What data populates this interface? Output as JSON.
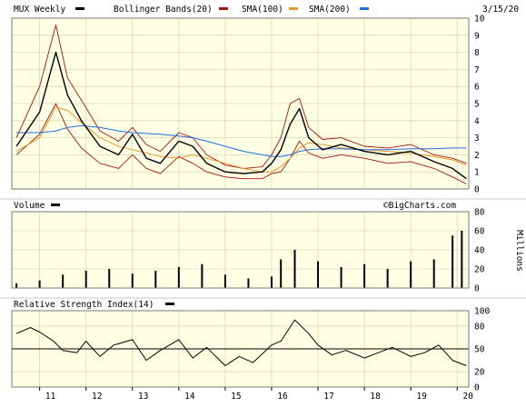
{
  "chart_data": [
    {
      "panel": "price",
      "type": "line",
      "title": "MUX Weekly",
      "legend": [
        {
          "name": "MUX Weekly",
          "color": "#000000"
        },
        {
          "name": "Bollinger Bands(20)",
          "color": "#aa1111"
        },
        {
          "name": "SMA(100)",
          "color": "#e39a2a"
        },
        {
          "name": "SMA(200)",
          "color": "#1f6fe0"
        }
      ],
      "legend_position": "top",
      "date_label": "3/15/20",
      "ylim": [
        0,
        10
      ],
      "yticks": [
        "0",
        "1",
        "2",
        "3",
        "4",
        "5",
        "6",
        "7",
        "8",
        "9",
        "10"
      ],
      "grid": true,
      "x_years": [
        2010.5,
        2011,
        2011.35,
        2011.6,
        2011.9,
        2012.3,
        2012.7,
        2013.0,
        2013.3,
        2013.6,
        2014.0,
        2014.3,
        2014.6,
        2015.0,
        2015.4,
        2015.8,
        2016.0,
        2016.2,
        2016.4,
        2016.6,
        2016.8,
        2017.1,
        2017.5,
        2018.0,
        2018.5,
        2019.0,
        2019.5,
        2019.9,
        2020.2
      ],
      "series": [
        {
          "name": "MUX Weekly",
          "values": [
            2.5,
            4.5,
            8.0,
            5.5,
            4.0,
            2.5,
            2.0,
            3.2,
            1.8,
            1.5,
            2.8,
            2.5,
            1.5,
            1.0,
            0.9,
            1.0,
            1.5,
            2.3,
            3.8,
            4.7,
            3.0,
            2.3,
            2.6,
            2.2,
            2.0,
            2.2,
            1.6,
            1.2,
            0.6
          ]
        },
        {
          "name": "Bollinger Upper",
          "values": [
            3.0,
            6.0,
            9.6,
            6.5,
            5.2,
            3.4,
            2.8,
            3.6,
            2.6,
            2.2,
            3.3,
            3.0,
            2.0,
            1.4,
            1.2,
            1.3,
            2.0,
            3.0,
            5.0,
            5.3,
            3.6,
            2.9,
            3.0,
            2.5,
            2.4,
            2.6,
            2.0,
            1.8,
            1.5
          ]
        },
        {
          "name": "Bollinger Lower",
          "values": [
            2.0,
            3.2,
            5.0,
            3.5,
            2.4,
            1.5,
            1.2,
            2.0,
            1.2,
            0.9,
            1.9,
            1.5,
            1.0,
            0.7,
            0.6,
            0.6,
            0.9,
            1.0,
            1.8,
            2.8,
            2.1,
            1.8,
            2.0,
            1.8,
            1.5,
            1.6,
            1.2,
            0.7,
            0.3
          ]
        },
        {
          "name": "SMA(100)",
          "values": [
            2.2,
            3.0,
            4.8,
            4.6,
            3.9,
            3.0,
            2.5,
            2.3,
            2.1,
            1.9,
            1.8,
            2.0,
            1.8,
            1.5,
            1.2,
            1.0,
            1.0,
            1.3,
            1.8,
            2.4,
            2.7,
            2.6,
            2.4,
            2.3,
            2.2,
            2.1,
            1.9,
            1.7,
            1.4
          ]
        },
        {
          "name": "SMA(200)",
          "values": [
            3.3,
            3.3,
            3.4,
            3.6,
            3.7,
            3.6,
            3.4,
            3.3,
            3.25,
            3.2,
            3.1,
            3.0,
            2.8,
            2.5,
            2.2,
            2.0,
            1.9,
            1.9,
            2.0,
            2.2,
            2.3,
            2.35,
            2.35,
            2.3,
            2.3,
            2.35,
            2.35,
            2.4,
            2.4
          ]
        }
      ]
    },
    {
      "panel": "volume",
      "type": "bar",
      "title": "Volume",
      "watermark": "©BigCharts.com",
      "ylabel": "Millions",
      "ylim": [
        0,
        80
      ],
      "yticks": [
        "0",
        "20",
        "40",
        "60",
        "80"
      ],
      "x_years": [
        2010.5,
        2011,
        2011.5,
        2012,
        2012.5,
        2013,
        2013.5,
        2014,
        2014.5,
        2015,
        2015.5,
        2016,
        2016.2,
        2016.5,
        2017,
        2017.5,
        2018,
        2018.5,
        2019,
        2019.5,
        2019.9,
        2020.1
      ],
      "values": [
        5,
        8,
        14,
        18,
        20,
        15,
        18,
        22,
        25,
        14,
        10,
        12,
        30,
        40,
        28,
        22,
        25,
        20,
        28,
        30,
        55,
        60
      ]
    },
    {
      "panel": "rsi",
      "type": "line",
      "title": "Relative Strength Index(14)",
      "ylim": [
        0,
        100
      ],
      "yticks": [
        "0",
        "20",
        "50",
        "80",
        "100"
      ],
      "reference_line": 50,
      "x_years": [
        2010.5,
        2010.8,
        2011.0,
        2011.3,
        2011.5,
        2011.8,
        2012.0,
        2012.3,
        2012.6,
        2013.0,
        2013.3,
        2013.6,
        2014.0,
        2014.3,
        2014.6,
        2015.0,
        2015.3,
        2015.6,
        2016.0,
        2016.2,
        2016.5,
        2016.8,
        2017.0,
        2017.3,
        2017.6,
        2018.0,
        2018.3,
        2018.6,
        2019.0,
        2019.3,
        2019.6,
        2019.9,
        2020.2
      ],
      "values": [
        70,
        78,
        72,
        60,
        48,
        45,
        60,
        40,
        55,
        62,
        35,
        48,
        62,
        38,
        52,
        28,
        40,
        32,
        55,
        60,
        88,
        70,
        55,
        42,
        48,
        38,
        45,
        52,
        40,
        45,
        55,
        35,
        28
      ]
    }
  ],
  "x_axis": {
    "year_ticks": [
      2011,
      2012,
      2013,
      2014,
      2015,
      2016,
      2017,
      2018,
      2019,
      2020
    ],
    "labels": [
      "11",
      "12",
      "13",
      "14",
      "15",
      "16",
      "17",
      "18",
      "19",
      "20"
    ]
  },
  "colors": {
    "panel_bg": "#ffffe4",
    "frame": "#7a7a7a",
    "grid": "#d9d7b8",
    "divider": "#c8c8c8",
    "watermark": "#666666"
  }
}
